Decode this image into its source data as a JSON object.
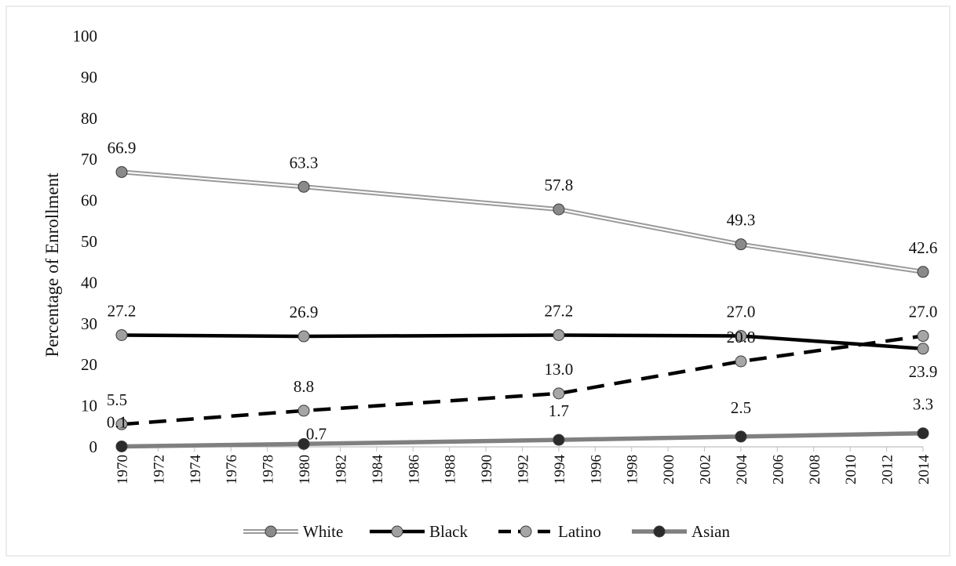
{
  "chart_data": {
    "type": "line",
    "title": "",
    "xlabel": "",
    "ylabel": "Percentage of Enrollment",
    "ylim": [
      0,
      100
    ],
    "y_ticks": [
      0,
      10,
      20,
      30,
      40,
      50,
      60,
      70,
      80,
      90,
      100
    ],
    "xlim": [
      1970,
      2014
    ],
    "x_ticks": [
      1970,
      1972,
      1974,
      1976,
      1978,
      1980,
      1982,
      1984,
      1986,
      1988,
      1990,
      1992,
      1994,
      1996,
      1998,
      2000,
      2002,
      2004,
      2006,
      2008,
      2010,
      2012,
      2014
    ],
    "x": [
      1970,
      1980,
      1994,
      2004,
      2014
    ],
    "grid": false,
    "legend_position": "bottom",
    "series": [
      {
        "name": "White",
        "values": [
          66.9,
          63.3,
          57.8,
          49.3,
          42.6
        ],
        "labels": [
          "66.9",
          "63.3",
          "57.8",
          "49.3",
          "42.6"
        ],
        "line_style": "double",
        "line_color": "#9a9a9a",
        "marker_color": "#8a8a8a"
      },
      {
        "name": "Black",
        "values": [
          27.2,
          26.9,
          27.2,
          27.0,
          23.9
        ],
        "labels": [
          "27.2",
          "26.9",
          "27.2",
          "27.0",
          "23.9"
        ],
        "line_style": "solid",
        "line_color": "#000000",
        "marker_color": "#a0a0a0"
      },
      {
        "name": "Latino",
        "values": [
          5.5,
          8.8,
          13.0,
          20.8,
          27.0
        ],
        "labels": [
          "5.5",
          "8.8",
          "13.0",
          "20.8",
          "27.0"
        ],
        "line_style": "dashed",
        "line_color": "#000000",
        "marker_color": "#a6a6a6"
      },
      {
        "name": "Asian",
        "values": [
          0.1,
          0.7,
          1.7,
          2.5,
          3.3
        ],
        "labels": [
          "0.1",
          "0.7",
          "1.7",
          "2.5",
          "3.3"
        ],
        "line_style": "solid-thick",
        "line_color": "#808080",
        "marker_color": "#2b2b2b"
      }
    ]
  }
}
